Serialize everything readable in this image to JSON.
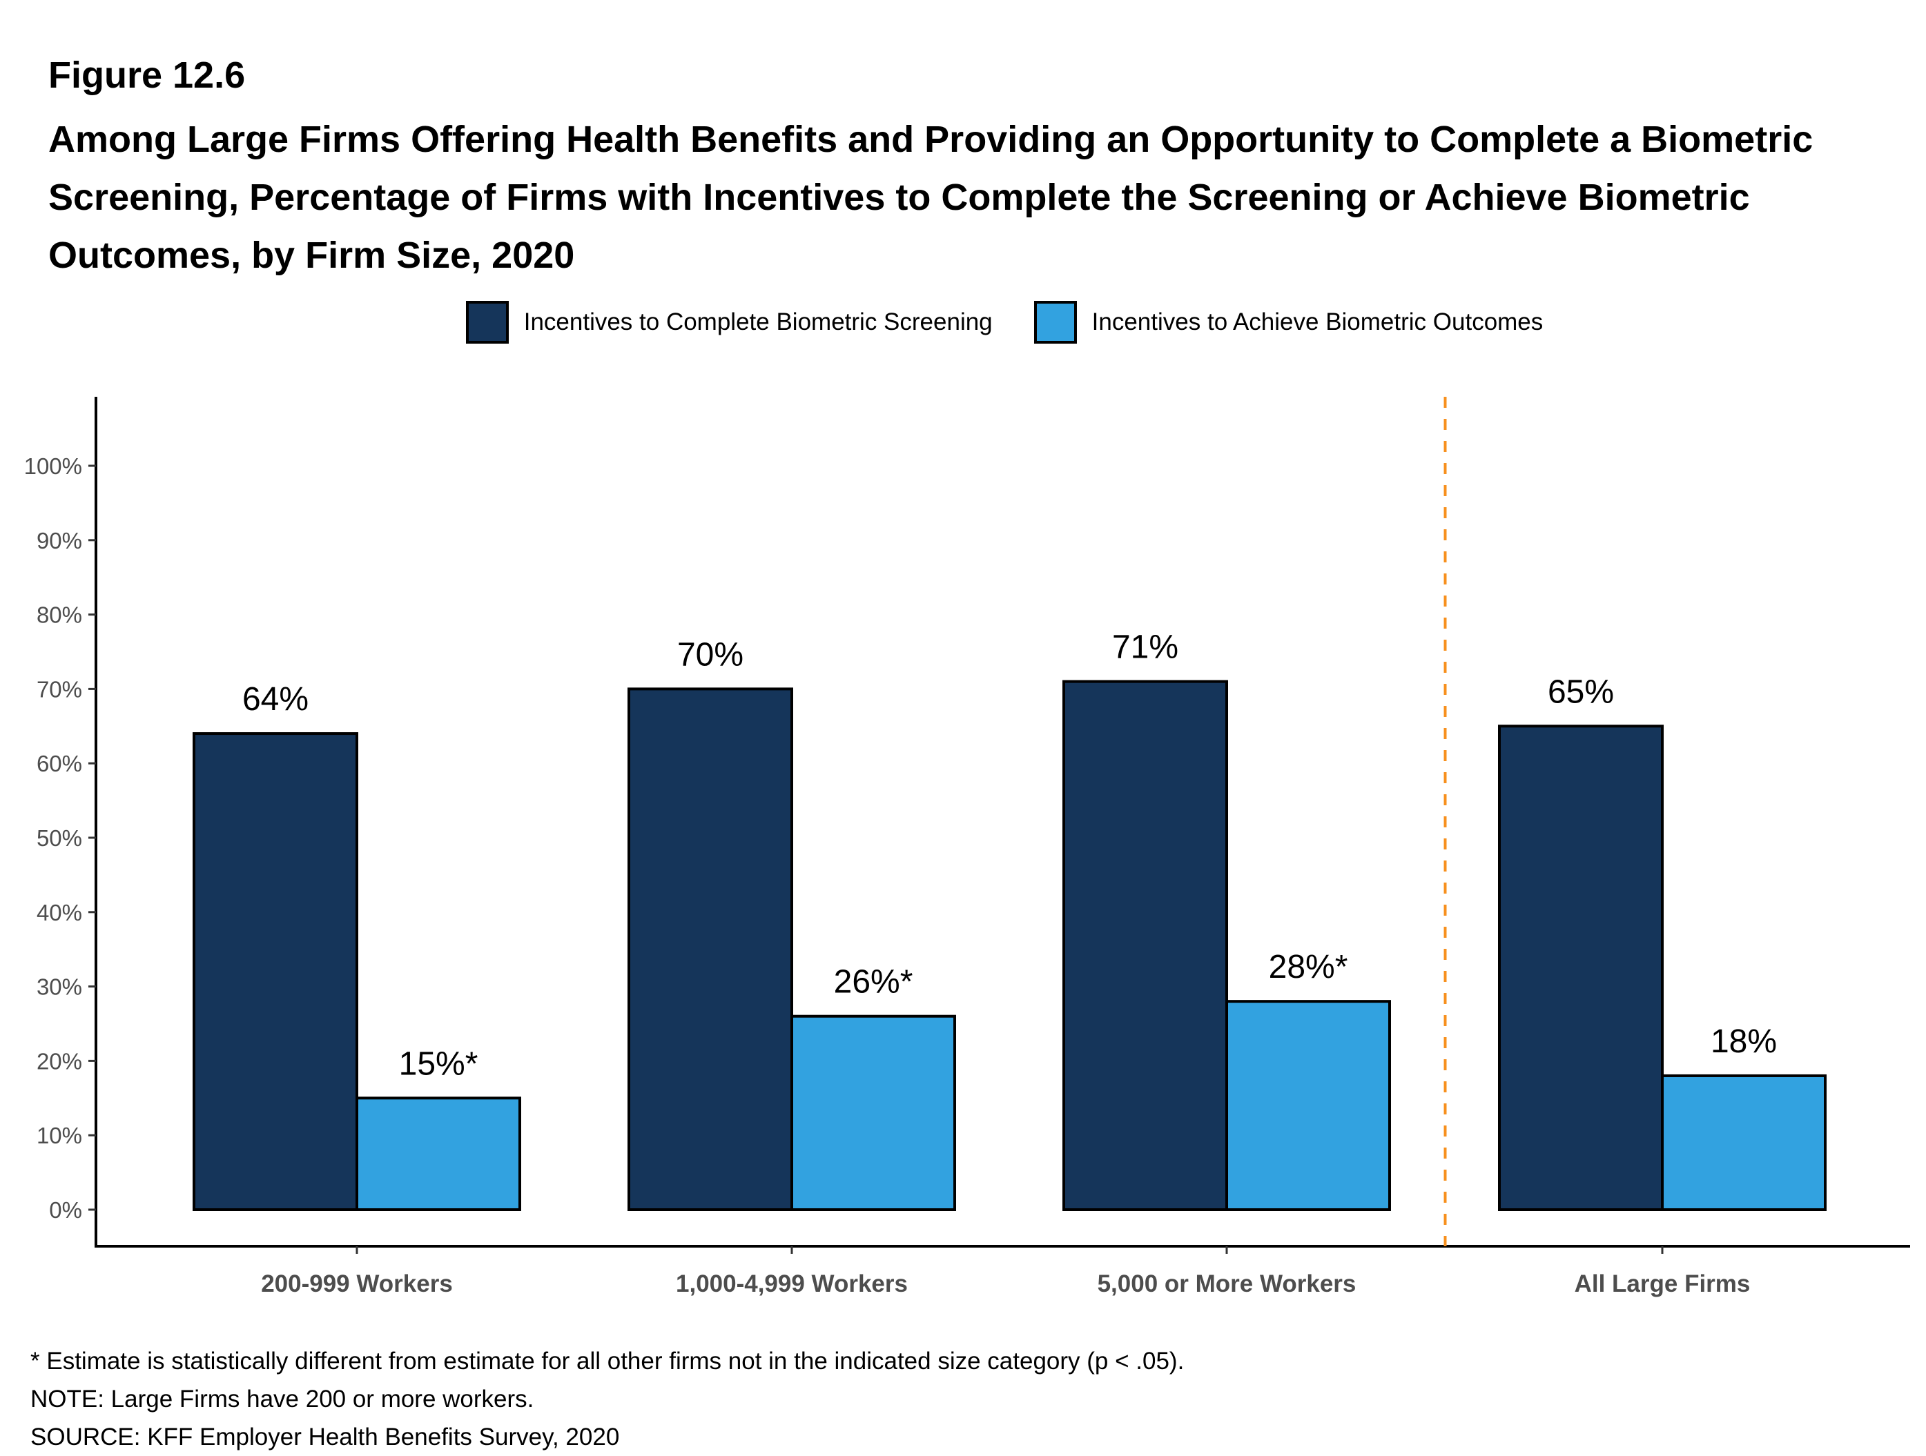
{
  "figure": {
    "label": "Figure 12.6",
    "title": "Among Large Firms Offering Health Benefits and Providing an Opportunity to Complete a Biometric Screening, Percentage of Firms with Incentives to Complete the Screening or Achieve Biometric Outcomes, by Firm Size, 2020"
  },
  "legend": [
    {
      "label": "Incentives to Complete Biometric Screening",
      "color": "#15355a"
    },
    {
      "label": "Incentives to Achieve Biometric Outcomes",
      "color": "#32a2e0"
    }
  ],
  "chart_data": {
    "type": "bar",
    "title": "Among Large Firms Offering Health Benefits and Providing an Opportunity to Complete a Biometric Screening, Percentage of Firms with Incentives to Complete the Screening or Achieve Biometric Outcomes, by Firm Size, 2020",
    "xlabel": "",
    "ylabel": "",
    "categories": [
      "200-999 Workers",
      "1,000-4,999 Workers",
      "5,000 or More Workers",
      "All Large Firms"
    ],
    "series": [
      {
        "name": "Incentives to Complete Biometric Screening",
        "color": "#15355a",
        "values": [
          64,
          70,
          71,
          65
        ],
        "labels": [
          "64%",
          "70%",
          "71%",
          "65%"
        ]
      },
      {
        "name": "Incentives to Achieve Biometric Outcomes",
        "color": "#32a2e0",
        "values": [
          15,
          26,
          28,
          18
        ],
        "labels": [
          "15%*",
          "26%*",
          "28%*",
          "18%"
        ]
      }
    ],
    "ylim": [
      0,
      100
    ],
    "yticks": [
      0,
      10,
      20,
      30,
      40,
      50,
      60,
      70,
      80,
      90,
      100
    ],
    "ytick_labels": [
      "0%",
      "10%",
      "20%",
      "30%",
      "40%",
      "50%",
      "60%",
      "70%",
      "80%",
      "90%",
      "100%"
    ],
    "grid": false,
    "legend_position": "top-center",
    "separator": {
      "after_category_index": 2,
      "style": "dashed",
      "color": "#f7901e"
    }
  },
  "notes": [
    "* Estimate is statistically different from estimate for all other firms not in the indicated size category (p < .05).",
    "NOTE: Large Firms have 200 or more workers.",
    "SOURCE: KFF Employer Health Benefits Survey, 2020"
  ]
}
